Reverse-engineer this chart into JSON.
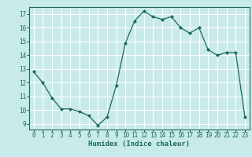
{
  "x": [
    0,
    1,
    2,
    3,
    4,
    5,
    6,
    7,
    8,
    9,
    10,
    11,
    12,
    13,
    14,
    15,
    16,
    17,
    18,
    19,
    20,
    21,
    22,
    23
  ],
  "y": [
    12.8,
    12.0,
    10.9,
    10.1,
    10.1,
    9.9,
    9.6,
    8.9,
    9.5,
    11.8,
    14.9,
    16.5,
    17.2,
    16.8,
    16.6,
    16.8,
    16.0,
    15.6,
    16.0,
    14.4,
    14.0,
    14.2,
    14.2,
    9.5
  ],
  "xlabel": "Humidex (Indice chaleur)",
  "ylim": [
    8.6,
    17.5
  ],
  "xlim": [
    -0.5,
    23.5
  ],
  "yticks": [
    9,
    10,
    11,
    12,
    13,
    14,
    15,
    16,
    17
  ],
  "xticks": [
    0,
    1,
    2,
    3,
    4,
    5,
    6,
    7,
    8,
    9,
    10,
    11,
    12,
    13,
    14,
    15,
    16,
    17,
    18,
    19,
    20,
    21,
    22,
    23
  ],
  "line_color": "#1a6b5a",
  "marker": "D",
  "marker_size": 2.0,
  "bg_color": "#c8eaea",
  "grid_color": "#ffffff",
  "tick_color": "#1a6b5a",
  "label_color": "#1a6b5a",
  "tick_fontsize": 5.5,
  "xlabel_fontsize": 6.5
}
